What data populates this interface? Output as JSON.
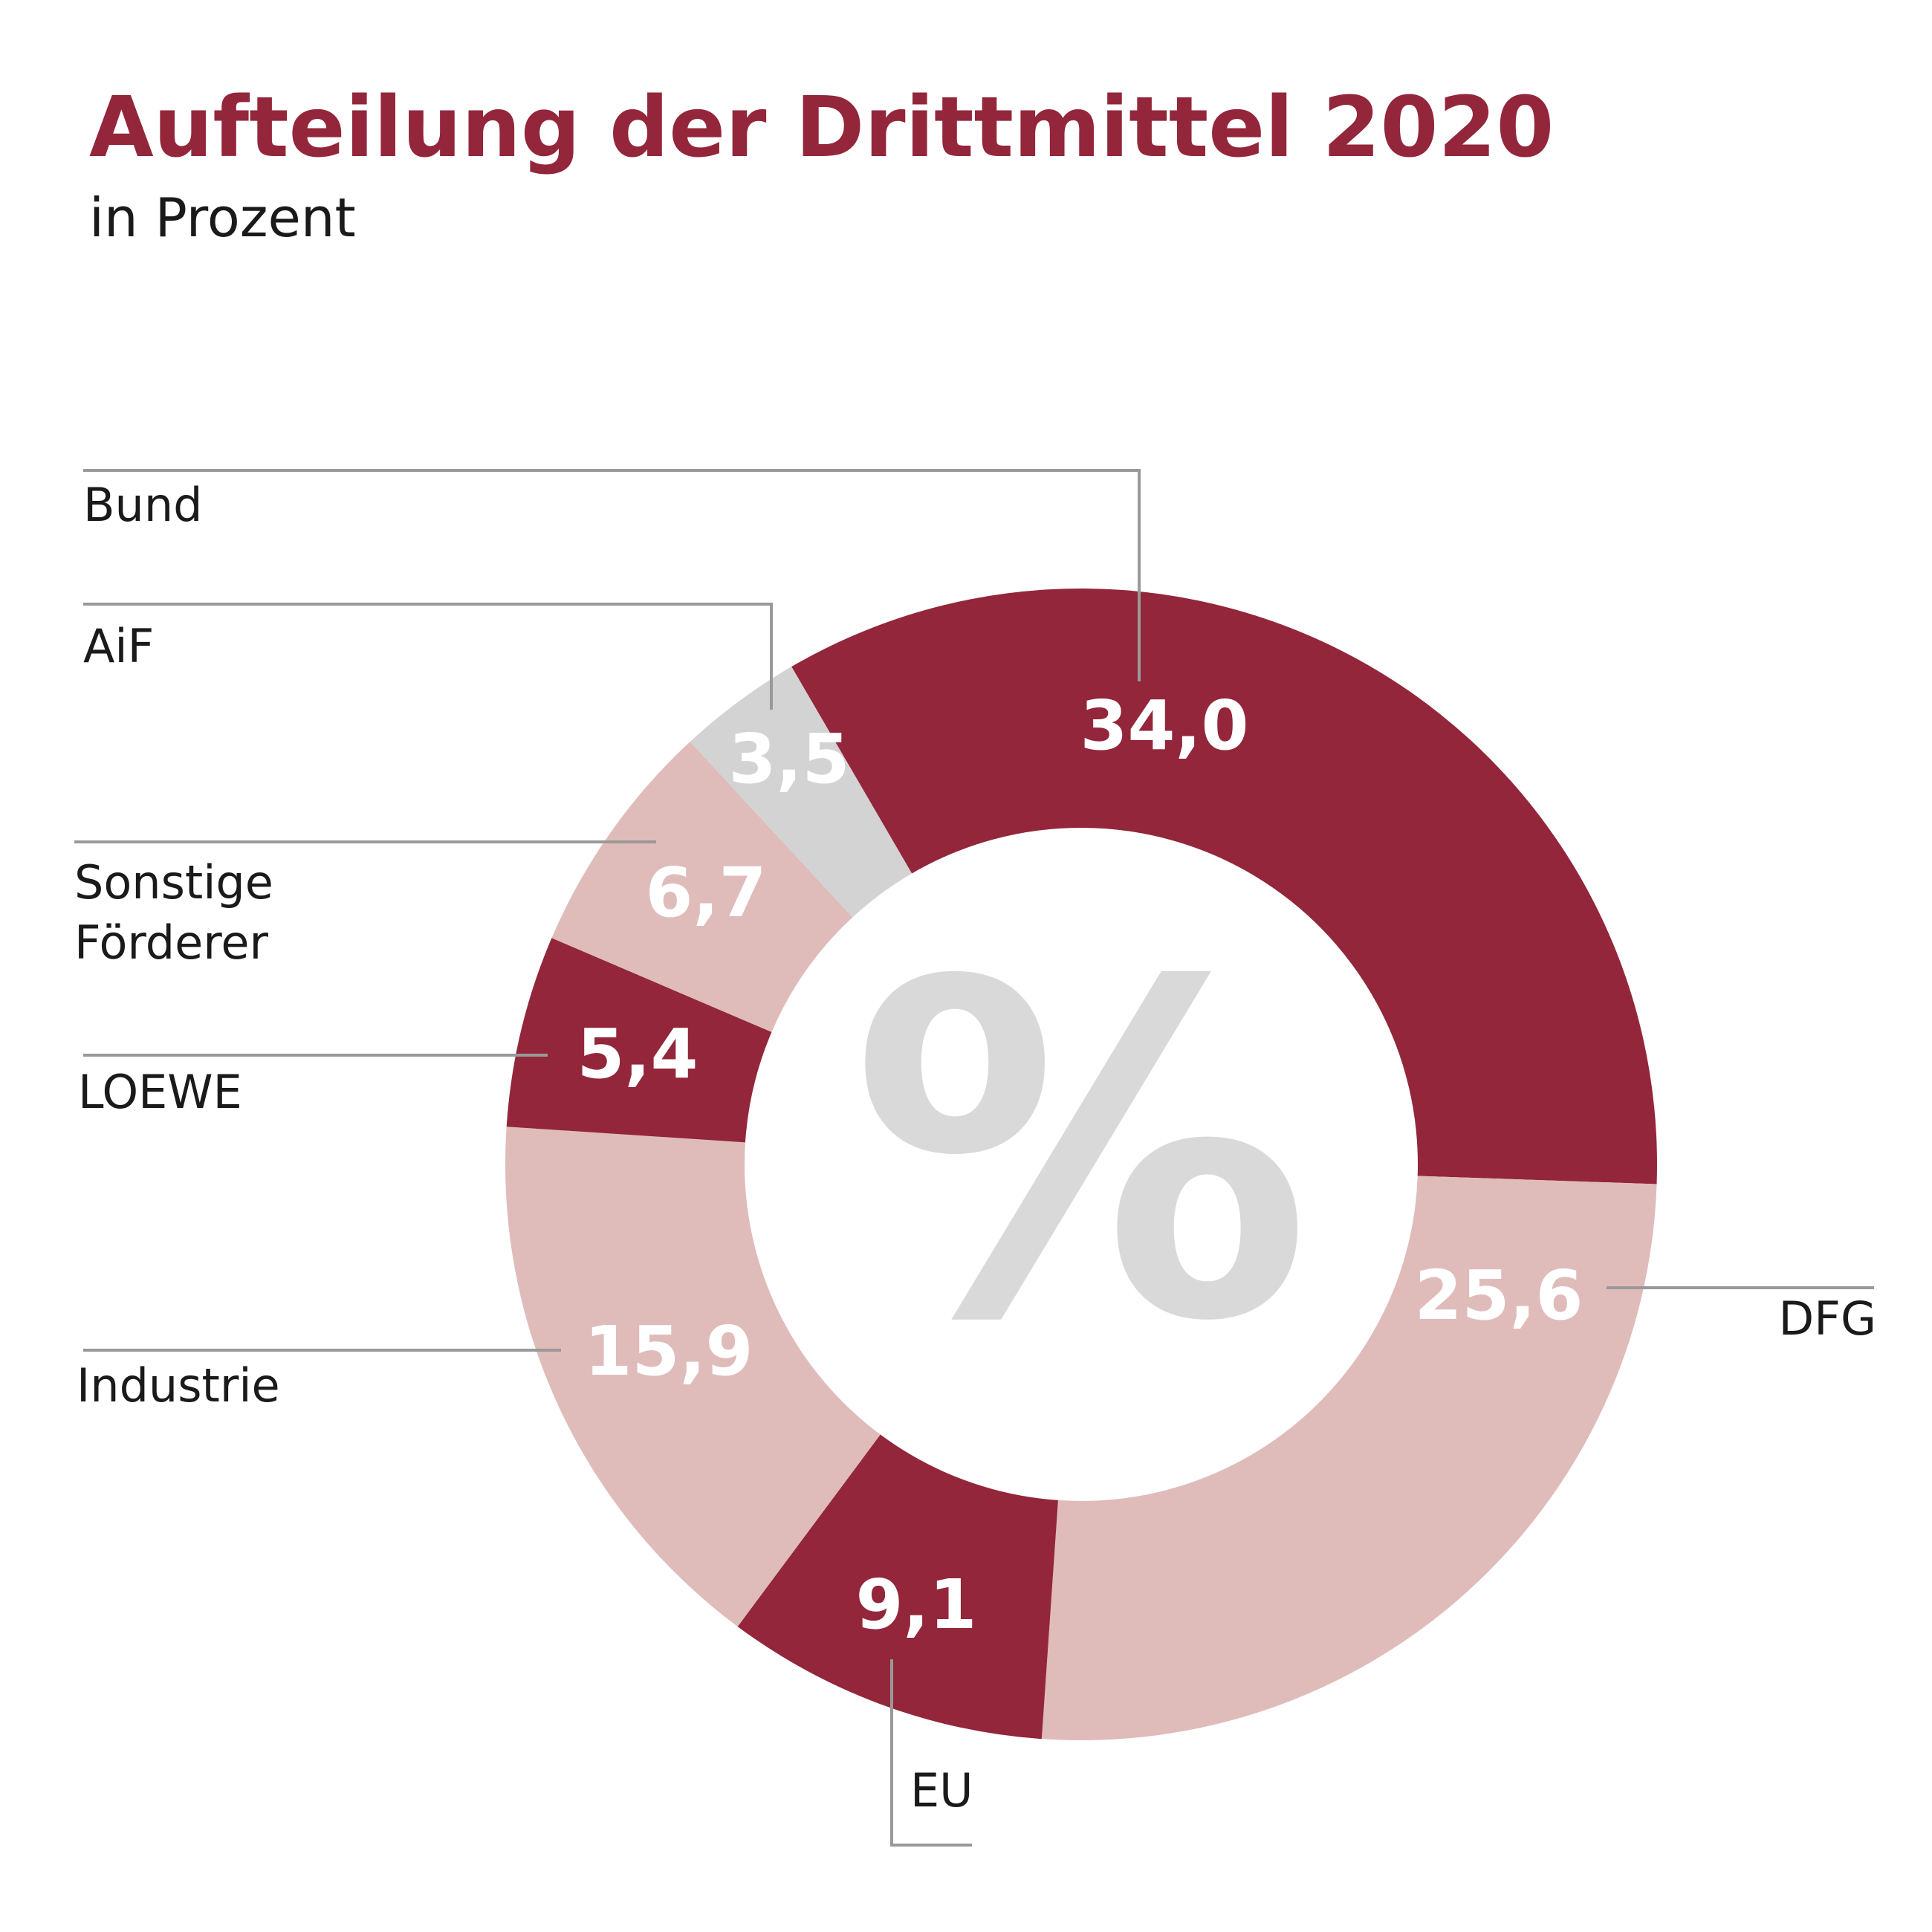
{
  "chart_data": {
    "type": "donut",
    "title": "Aufteilung der Drittmittel 2020",
    "subtitle": "in Prozent",
    "center_label": "%",
    "categories": [
      "Bund",
      "DFG",
      "EU",
      "Industrie",
      "LOEWE",
      "Sonstige Förderer",
      "AiF"
    ],
    "values": [
      34.0,
      25.6,
      9.1,
      15.9,
      5.4,
      6.7,
      3.5
    ],
    "value_labels": [
      "34,0",
      "25,6",
      "9,1",
      "15,9",
      "5,4",
      "6,7",
      "3,5"
    ],
    "colors": [
      "#93263a",
      "#dfbcba",
      "#93263a",
      "#dfbcba",
      "#93263a",
      "#dfbcba",
      "#d3d3d3"
    ]
  }
}
